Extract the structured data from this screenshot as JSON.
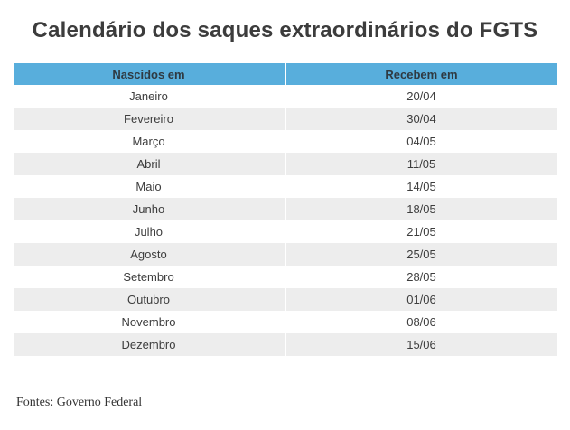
{
  "chart_data": {
    "type": "table",
    "title": "Calendário dos saques extraordinários do FGTS",
    "columns": [
      "Nascidos em",
      "Recebem em"
    ],
    "rows": [
      [
        "Janeiro",
        "20/04"
      ],
      [
        "Fevereiro",
        "30/04"
      ],
      [
        "Março",
        "04/05"
      ],
      [
        "Abril",
        "11/05"
      ],
      [
        "Maio",
        "14/05"
      ],
      [
        "Junho",
        "18/05"
      ],
      [
        "Julho",
        "21/05"
      ],
      [
        "Agosto",
        "25/05"
      ],
      [
        "Setembro",
        "28/05"
      ],
      [
        "Outubro",
        "01/06"
      ],
      [
        "Novembro",
        "08/06"
      ],
      [
        "Dezembro",
        "15/06"
      ]
    ],
    "source": "Fontes: Governo Federal",
    "layout": {
      "header_bg": "#58aedc",
      "row_alt_bg": "#ededed",
      "row_bg": "#ffffff",
      "title_color": "#3c3c3c",
      "grid": "off",
      "legend": "none"
    }
  }
}
